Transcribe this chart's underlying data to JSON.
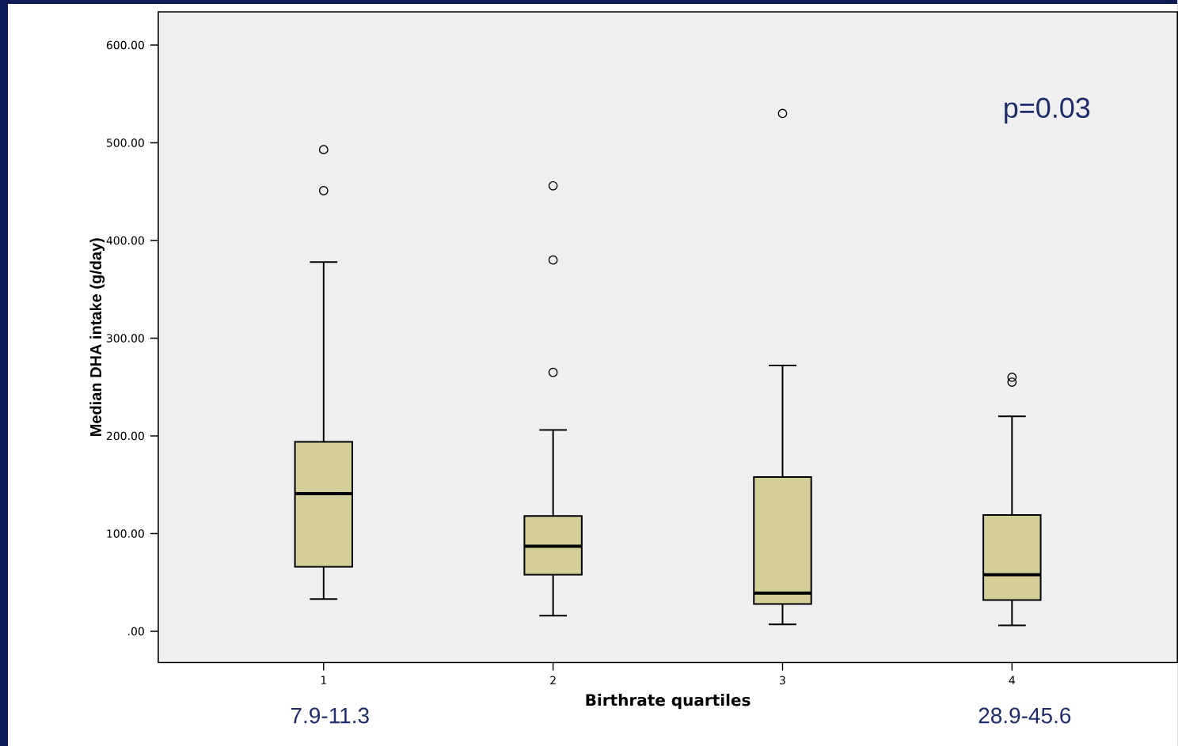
{
  "chart_data": {
    "type": "box",
    "xlabel": "Birthrate quartiles",
    "ylabel": "Median DHA intake (g/day)",
    "categories": [
      "1",
      "2",
      "3",
      "4"
    ],
    "color": "#d4cf98",
    "boxes": [
      {
        "low": 33,
        "q1": 66,
        "median": 141,
        "q3": 194,
        "high": 378,
        "outliers": [
          451,
          493
        ]
      },
      {
        "low": 16,
        "q1": 58,
        "median": 87,
        "q3": 118,
        "high": 206,
        "outliers": [
          265,
          380,
          456
        ]
      },
      {
        "low": 7,
        "q1": 28,
        "median": 39,
        "q3": 158,
        "high": 272,
        "outliers": [
          530
        ]
      },
      {
        "low": 6,
        "q1": 32,
        "median": 58,
        "q3": 119,
        "high": 220,
        "outliers": [
          255,
          260
        ]
      }
    ],
    "ylim": [
      -32,
      634
    ],
    "yticks": [
      {
        "value": 0,
        "label": ".00"
      },
      {
        "value": 100,
        "label": "100.00"
      },
      {
        "value": 200,
        "label": "200.00"
      },
      {
        "value": 300,
        "label": "300.00"
      },
      {
        "value": 400,
        "label": "400.00"
      },
      {
        "value": 500,
        "label": "500.00"
      },
      {
        "value": 600,
        "label": "600.00"
      }
    ],
    "grid": false,
    "marker": "circle",
    "annotations": [
      "p=0.03",
      "7.9-11.3",
      "28.9-45.6"
    ]
  }
}
